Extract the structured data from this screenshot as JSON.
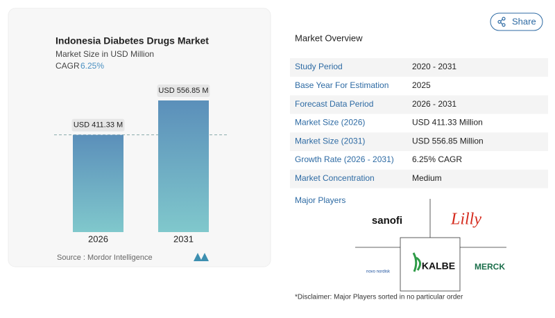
{
  "chart_data": {
    "type": "bar",
    "title": "Indonesia Diabetes Drugs Market",
    "subtitle": "Market Size in USD Million",
    "cagr_label": "CAGR",
    "cagr_value": "6.25%",
    "categories": [
      "2026",
      "2031"
    ],
    "values": [
      411.33,
      556.85
    ],
    "value_labels": [
      "USD 411.33 M",
      "USD 556.85 M"
    ],
    "source": "Source :  Mordor Intelligence"
  },
  "share": "Share",
  "overview": {
    "title": "Market Overview",
    "rows": [
      [
        "Study Period",
        "2020 - 2031"
      ],
      [
        "Base Year For Estimation",
        "2025"
      ],
      [
        "Forecast Data Period",
        "2026 - 2031"
      ],
      [
        "Market Size (2026)",
        "USD 411.33 Million"
      ],
      [
        "Market Size (2031)",
        "USD 556.85 Million"
      ],
      [
        "Growth Rate (2026 - 2031)",
        "6.25% CAGR"
      ],
      [
        "Market Concentration",
        "Medium"
      ]
    ]
  },
  "players": {
    "title": "Major Players",
    "logos": [
      "sanofi",
      "Lilly",
      "novo nordisk",
      "KALBE",
      "MERCK"
    ]
  },
  "disclaimer": "*Disclaimer: Major Players sorted in no particular order"
}
